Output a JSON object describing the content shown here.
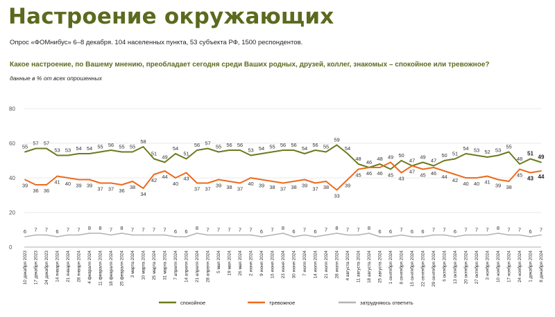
{
  "page": {
    "title": "Настроение окружающих",
    "survey_info": "Опрос «ФОМнибус» 6–8 декабря. 104 населенных пункта, 53 субъекта РФ, 1500 респондентов.",
    "question": "Какое настроение, по Вашему мнению, преобладает сегодня среди Ваших родных, друзей, коллег, знакомых – спокойное или тревожное?",
    "unit_note": "данные в % от всех опрошенных"
  },
  "chart_data": {
    "type": "line",
    "ylim": [
      0,
      80
    ],
    "yticks": [
      0,
      20,
      40,
      60,
      80
    ],
    "grid": "horizontal",
    "legend_position": "bottom",
    "x": [
      "10 декабря 2023",
      "17 декабря 2023",
      "24 декабря 2023",
      "14 января 2024",
      "21 января 2024",
      "28 января 2024",
      "4 февраля 2024",
      "11 февраля 2024",
      "18 февраля 2024",
      "25 февраля 2024",
      "3 марта 2024",
      "10 марта 2024",
      "25 марта 2024",
      "31 марта 2024",
      "7 апреля 2024",
      "14 апреля 2024",
      "21 апреля 2024",
      "28 апреля 2024",
      "5 мая 2024",
      "19 мая 2024",
      "26 мая 2024",
      "2 июня 2024",
      "9 июня 2024",
      "16 июня 2024",
      "23 июня 2024",
      "30 июня 2024",
      "7 июля 2024",
      "14 июля 2024",
      "21 июля 2024",
      "28 июля 2024",
      "4 августа 2024",
      "11 августа 2024",
      "18 августа 2024",
      "25 августа 2024",
      "1 сентября 2024",
      "8 сентября 2024",
      "15 сентября 2024",
      "22 сентября 2024",
      "29 сентября 2024",
      "6 октября 2024",
      "13 октября 2024",
      "20 октября 2024",
      "27 октября 2024",
      "3 ноября 2024",
      "10 ноября 2024",
      "17 ноября 2024",
      "24 ноября 2024",
      "1 декабря 2024",
      "8 декабря 2024"
    ],
    "series": [
      {
        "name": "спокойное",
        "color": "#6b7a1e",
        "values": [
          55,
          57,
          57,
          53,
          53,
          54,
          54,
          55,
          56,
          55,
          55,
          58,
          51,
          49,
          54,
          51,
          56,
          57,
          55,
          56,
          56,
          53,
          54,
          55,
          56,
          56,
          54,
          56,
          55,
          59,
          54,
          48,
          46,
          48,
          45,
          50,
          47,
          49,
          47,
          50,
          51,
          54,
          53,
          52,
          53,
          55,
          48,
          51,
          49
        ]
      },
      {
        "name": "тревожное",
        "color": "#ec6a1c",
        "values": [
          39,
          36,
          36,
          41,
          40,
          39,
          39,
          37,
          37,
          36,
          38,
          34,
          42,
          44,
          40,
          43,
          37,
          37,
          39,
          38,
          37,
          40,
          39,
          38,
          37,
          38,
          39,
          37,
          38,
          33,
          39,
          45,
          46,
          46,
          49,
          43,
          47,
          45,
          46,
          44,
          42,
          40,
          40,
          41,
          39,
          38,
          45,
          43,
          44
        ]
      },
      {
        "name": "затрудняюсь ответить",
        "color": "#b3b3b3",
        "values": [
          6,
          7,
          7,
          6,
          7,
          7,
          8,
          8,
          7,
          8,
          7,
          7,
          7,
          7,
          6,
          6,
          8,
          7,
          7,
          7,
          7,
          7,
          6,
          7,
          8,
          6,
          7,
          6,
          7,
          8,
          7,
          7,
          8,
          6,
          6,
          7,
          6,
          6,
          7,
          7,
          6,
          7,
          7,
          7,
          8,
          7,
          7,
          6,
          7
        ]
      }
    ]
  }
}
